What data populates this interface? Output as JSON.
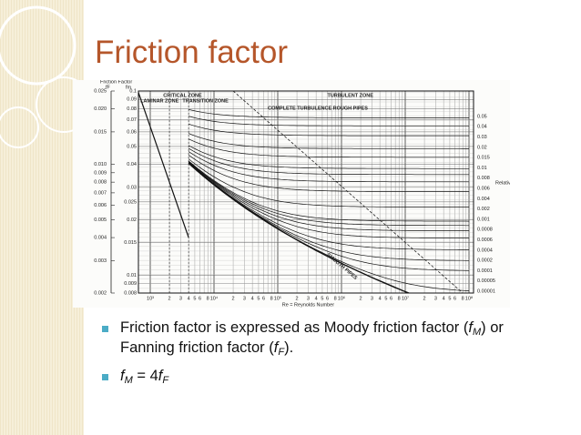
{
  "title": "Friction factor",
  "figure": {
    "axis_title": "Friction Factor",
    "f_f_symbol": "fF",
    "f_m_symbol": "fm",
    "f_f_ticks": [
      "0.025",
      "0.020",
      "0.015",
      "0.010",
      "0.009",
      "0.008",
      "0.007",
      "0.006",
      "0.005",
      "0.004",
      "0.003",
      "0.002"
    ],
    "f_m_ticks": [
      "0.1",
      "0.09",
      "0.08",
      "0.07",
      "0.06",
      "0.05",
      "0.04",
      "0.03",
      "0.025",
      "0.02",
      "0.015",
      "0.01",
      "0.009",
      "0.008"
    ],
    "roughness_ticks": [
      "0.05",
      "0.04",
      "0.03",
      "0.02",
      "0.015",
      "0.01",
      "0.008",
      "0.006",
      "0.004",
      "0.002",
      "0.001",
      "0.0008",
      "0.0006",
      "0.0004",
      "0.0002",
      "0.0001",
      "0.00005",
      "0.00001"
    ],
    "roughness_title": "Relative Roughness",
    "x_decades": [
      "10³",
      "10⁴",
      "10⁵",
      "10⁶",
      "10⁷",
      "10⁸"
    ],
    "x_minor": [
      "2",
      "3",
      "4",
      "5",
      "6",
      "8"
    ],
    "x_title": "Re = Reynolds Number",
    "zones": {
      "critical": "CRITICAL ZONE",
      "laminar": "LAMINAR ZONE",
      "transition": "TRANSITION ZONE",
      "turbulent": "TURBULENT ZONE",
      "complete": "COMPLETE TURBULENCE ROUGH PIPES",
      "smooth": "SMOOTH PIPES"
    }
  },
  "bullets": [
    [
      {
        "text": "Friction factor is expressed as Moody friction factor ("
      },
      {
        "text": "f",
        "style": "italic"
      },
      {
        "text": "M",
        "style": "sub"
      },
      {
        "text": ") or Fanning friction factor ("
      },
      {
        "text": "f",
        "style": "italic"
      },
      {
        "text": "F",
        "style": "sub"
      },
      {
        "text": ")."
      }
    ],
    [
      {
        "text": "f",
        "style": "italic"
      },
      {
        "text": "M",
        "style": "sub"
      },
      {
        "text": " = 4"
      },
      {
        "text": "f",
        "style": "italic"
      },
      {
        "text": "F",
        "style": "sub"
      }
    ]
  ]
}
